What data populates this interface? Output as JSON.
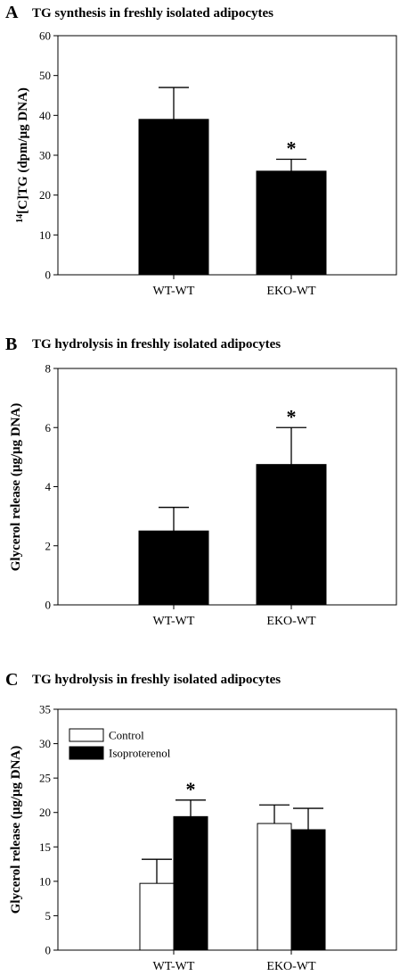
{
  "chart_data": [
    {
      "type": "bar",
      "panel_letter": "A",
      "title": "TG synthesis in freshly isolated adipocytes",
      "ylabel_sup": "14",
      "ylabel": "[C]TG (dpm/μg DNA)",
      "xlabel": "",
      "categories": [
        "WT-WT",
        "EKO-WT"
      ],
      "series": [
        {
          "values": [
            39,
            26
          ],
          "errors": [
            8,
            3
          ],
          "color": "#000000"
        }
      ],
      "significance": [
        "",
        "*"
      ],
      "ylim": [
        0,
        60
      ],
      "yticks": [
        0,
        10,
        20,
        30,
        40,
        50,
        60
      ],
      "grid": false
    },
    {
      "type": "bar",
      "panel_letter": "B",
      "title": "TG hydrolysis in freshly isolated adipocytes",
      "ylabel": "Glycerol release (μg/μg DNA)",
      "xlabel": "",
      "categories": [
        "WT-WT",
        "EKO-WT"
      ],
      "series": [
        {
          "values": [
            2.5,
            4.75
          ],
          "errors": [
            0.8,
            1.25
          ],
          "color": "#000000"
        }
      ],
      "significance": [
        "",
        "*"
      ],
      "ylim": [
        0,
        8
      ],
      "yticks": [
        0,
        2,
        4,
        6,
        8
      ],
      "grid": false
    },
    {
      "type": "bar",
      "panel_letter": "C",
      "title": "TG hydrolysis in freshly isolated adipocytes",
      "ylabel": "Glycerol release (μg/μg DNA)",
      "xlabel": "",
      "categories": [
        "WT-WT",
        "EKO-WT"
      ],
      "series": [
        {
          "name": "Control",
          "values": [
            9.7,
            18.4
          ],
          "errors": [
            3.5,
            2.7
          ],
          "color": "#ffffff"
        },
        {
          "name": "Isoproterenol",
          "values": [
            19.4,
            17.5
          ],
          "errors": [
            2.4,
            3.1
          ],
          "color": "#000000"
        }
      ],
      "significance": [
        "*",
        ""
      ],
      "legend": "top-left",
      "ylim": [
        0,
        35
      ],
      "yticks": [
        0,
        5,
        10,
        15,
        20,
        25,
        30,
        35
      ],
      "grid": false
    }
  ]
}
